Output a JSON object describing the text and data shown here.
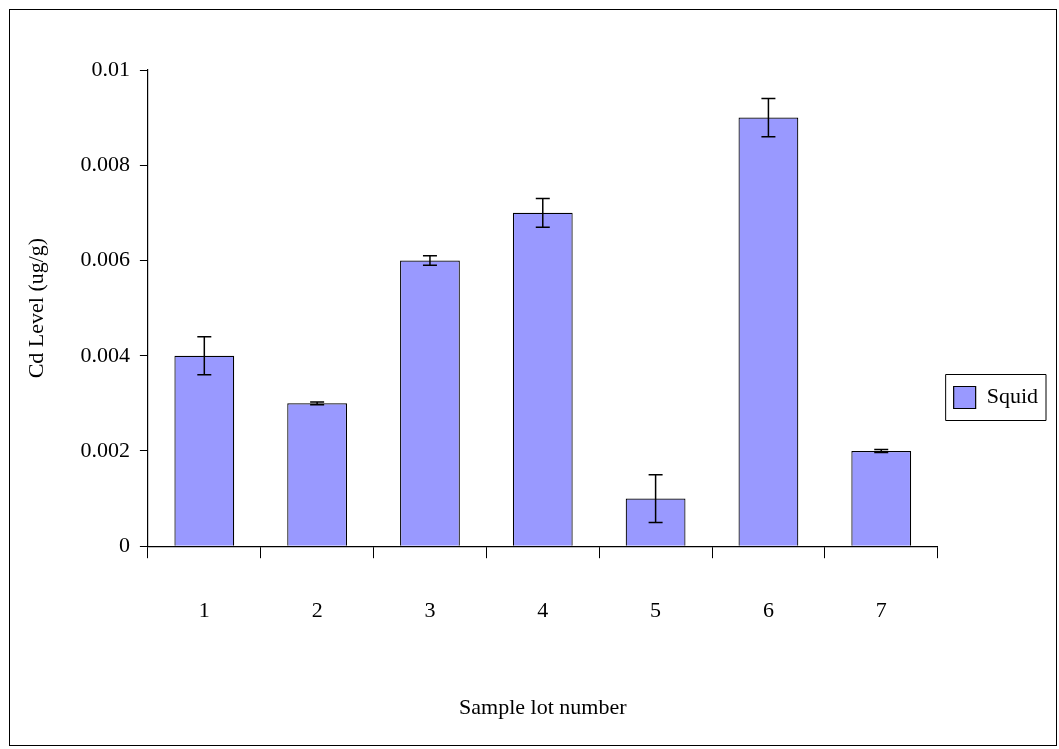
{
  "chart_data": {
    "type": "bar",
    "xlabel": "Sample lot number",
    "ylabel": "Cd Level (ug/g)",
    "categories": [
      "1",
      "2",
      "3",
      "4",
      "5",
      "6",
      "7"
    ],
    "series": [
      {
        "name": "Squid",
        "color": "#9999ff",
        "values": [
          0.004,
          0.003,
          0.006,
          0.007,
          0.001,
          0.009,
          0.002
        ],
        "errors": [
          0.0004,
          3e-05,
          0.0001,
          0.0003,
          0.0005,
          0.0004,
          3e-05
        ]
      }
    ],
    "ylim": [
      0,
      0.01
    ],
    "yticks": [
      0,
      0.002,
      0.004,
      0.006,
      0.008,
      0.01
    ],
    "grid": false,
    "legend": "right"
  }
}
